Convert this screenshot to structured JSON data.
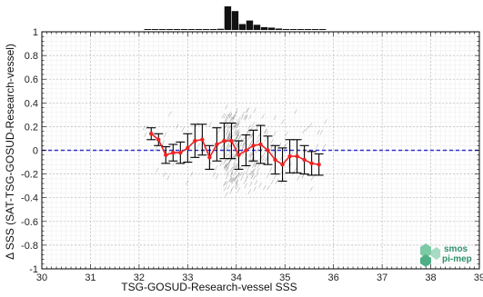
{
  "chart_data": {
    "type": "line",
    "xlabel": "TSG-GOSUD-Research-vessel SSS",
    "ylabel": "Δ SSS (SAT-TSG-GOSUD-Research-vessel)",
    "xlim": [
      30,
      39
    ],
    "ylim": [
      -1,
      1
    ],
    "xticks": [
      "30",
      "31",
      "32",
      "33",
      "34",
      "35",
      "36",
      "37",
      "38",
      "39"
    ],
    "yticks": [
      "-1",
      "-0.8",
      "-0.6",
      "-0.4",
      "-0.2",
      "0",
      "0.2",
      "0.4",
      "0.6",
      "0.8",
      "1"
    ],
    "grid": true,
    "reference_line": {
      "y": 0,
      "style": "dashed",
      "color": "#3333cc"
    },
    "series": [
      {
        "kind": "binned_mean_with_std",
        "color": "#ee2222",
        "x": [
          32.25,
          32.4,
          32.55,
          32.7,
          32.85,
          33.0,
          33.15,
          33.3,
          33.45,
          33.6,
          33.75,
          33.9,
          34.05,
          34.2,
          34.35,
          34.5,
          34.65,
          34.8,
          34.95,
          35.1,
          35.25,
          35.4,
          35.55,
          35.7
        ],
        "y": [
          0.14,
          0.09,
          -0.04,
          -0.02,
          -0.02,
          0.02,
          0.08,
          0.09,
          -0.06,
          0.05,
          0.08,
          0.08,
          -0.04,
          0.0,
          0.04,
          0.05,
          0.0,
          -0.08,
          -0.12,
          -0.05,
          -0.05,
          -0.08,
          -0.11,
          -0.12
        ],
        "err": [
          0.05,
          0.05,
          0.07,
          0.07,
          0.09,
          0.12,
          0.14,
          0.13,
          0.1,
          0.14,
          0.15,
          0.15,
          0.12,
          0.13,
          0.13,
          0.16,
          0.12,
          0.12,
          0.14,
          0.14,
          0.14,
          0.12,
          0.1,
          0.09
        ]
      }
    ],
    "histogram_top": {
      "color": "#111111",
      "bin_edges": [
        32.1,
        32.25,
        32.4,
        32.55,
        32.7,
        32.85,
        33.0,
        33.15,
        33.3,
        33.45,
        33.6,
        33.75,
        33.9,
        34.05,
        34.2,
        34.35,
        34.5,
        34.65,
        34.8,
        34.95,
        35.1,
        35.25,
        35.4,
        35.55,
        35.7,
        35.85
      ],
      "counts": [
        1,
        1,
        1,
        1,
        1,
        1,
        1,
        1,
        1,
        2,
        5,
        100,
        80,
        25,
        40,
        22,
        12,
        10,
        6,
        4,
        3,
        2,
        2,
        1,
        1
      ]
    },
    "logo": {
      "line1": "smos",
      "line2": "pi-mep"
    }
  }
}
